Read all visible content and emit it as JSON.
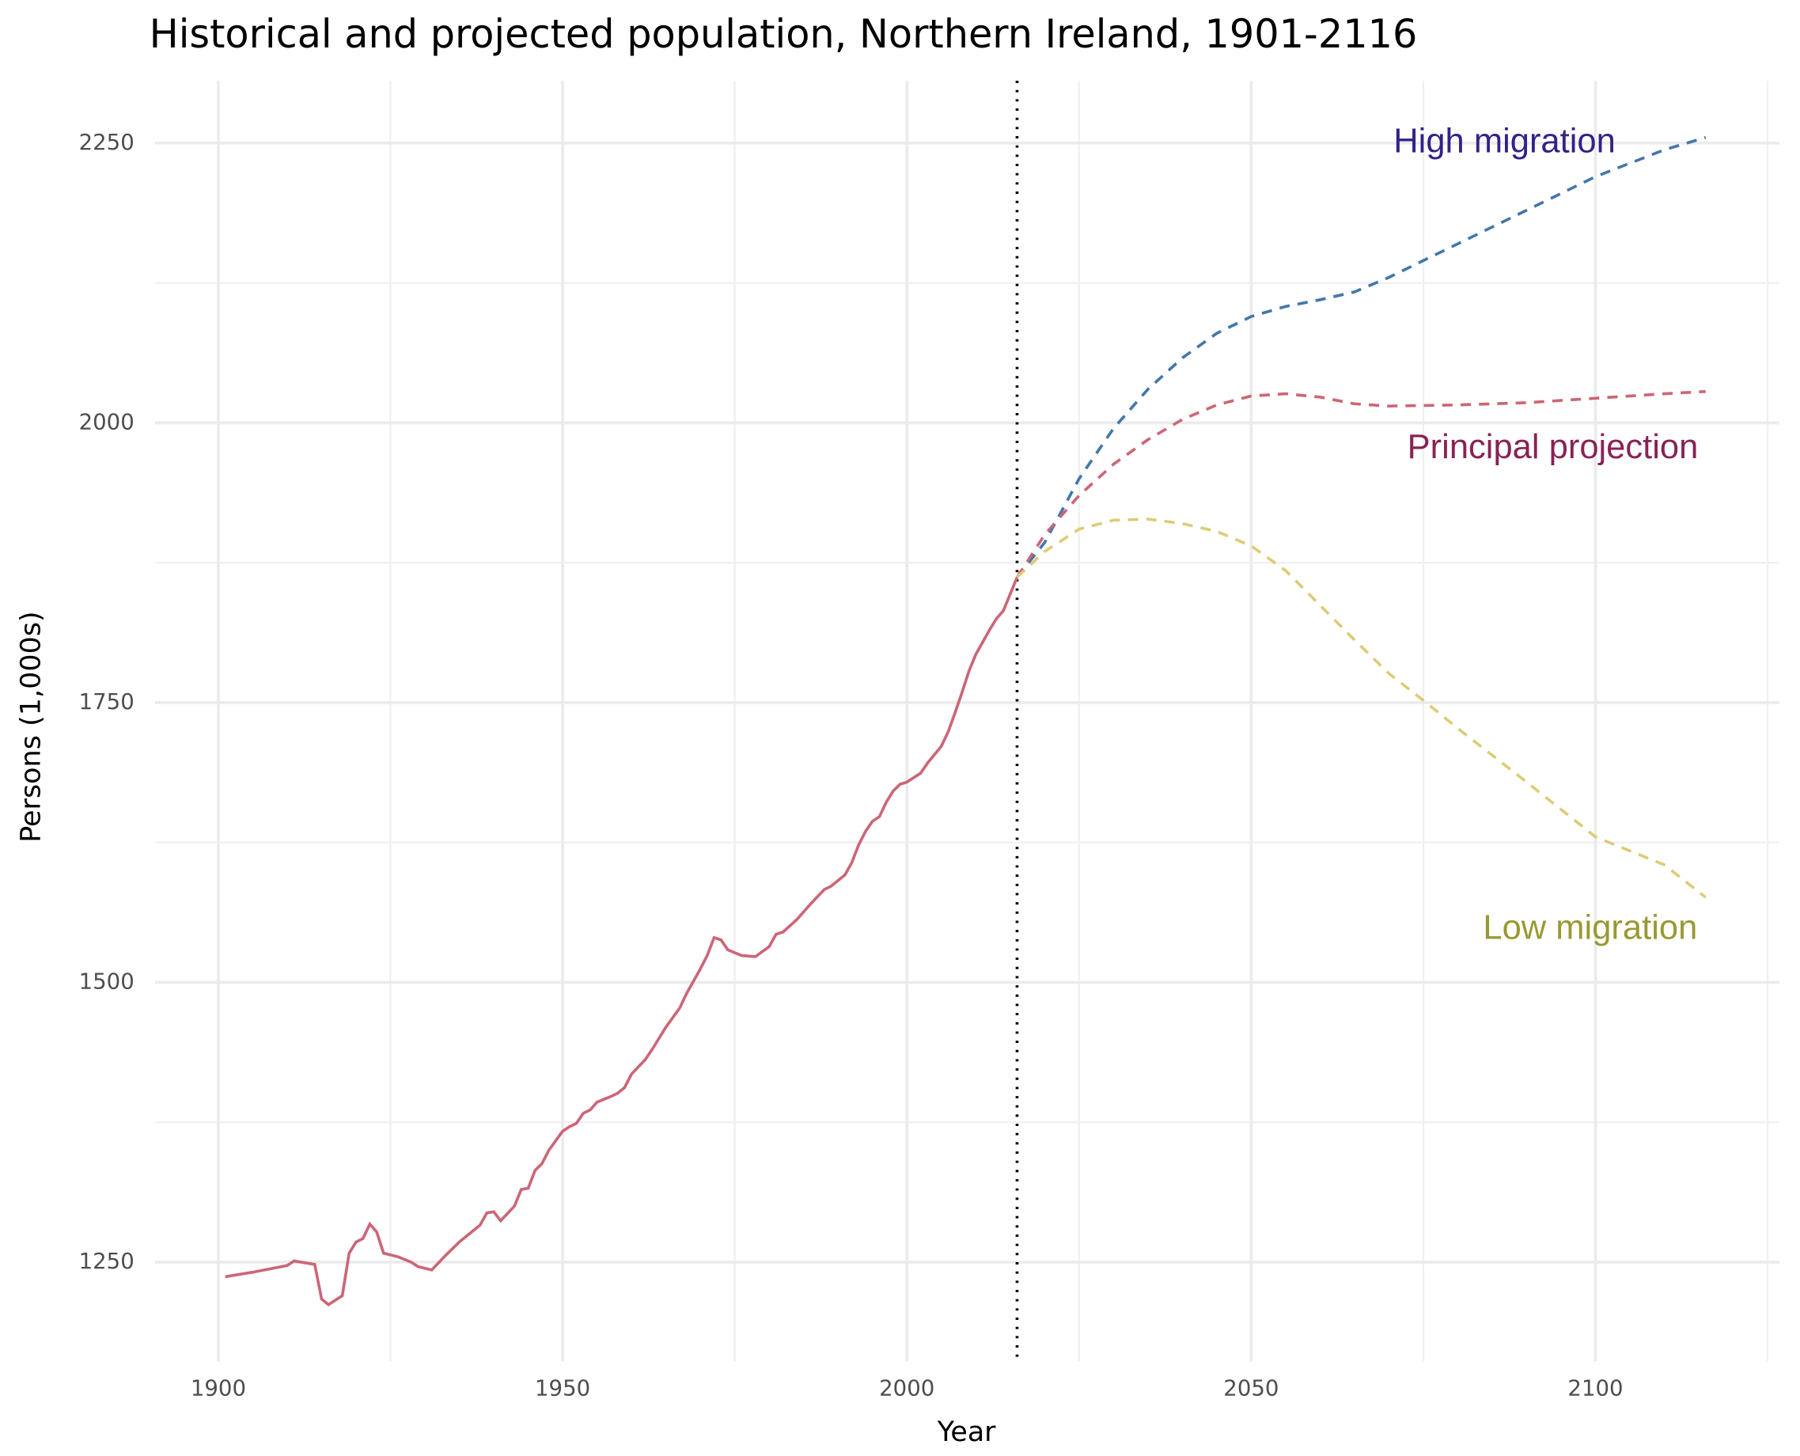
{
  "chart_data": {
    "type": "line",
    "title": "Historical and projected population, Northern Ireland, 1901-2116",
    "x_label": "Year",
    "y_label": "Persons (1,000s)",
    "xlim": [
      1890.8,
      2126.7
    ],
    "ylim": [
      1161.3,
      2305.7
    ],
    "xticks": [
      1900,
      1950,
      2000,
      2050,
      2100
    ],
    "yticks": [
      1250,
      1500,
      1750,
      2000,
      2250
    ],
    "xminor": [
      1925,
      1975,
      2025,
      2075,
      2125
    ],
    "yminor": [
      1375,
      1625,
      1875,
      2125
    ],
    "grid": true,
    "vline": 2016,
    "series": [
      {
        "color": "#cc6677",
        "dashed": false,
        "x": [
          1901,
          1905,
          1910,
          1911,
          1914,
          1915,
          1916,
          1918,
          1919,
          1920,
          1921,
          1922,
          1923,
          1924,
          1926,
          1928,
          1929,
          1931,
          1933,
          1935,
          1938,
          1939,
          1940,
          1941,
          1943,
          1944,
          1945,
          1946,
          1947,
          1948,
          1950,
          1951,
          1952,
          1953,
          1954,
          1955,
          1957,
          1958,
          1959,
          1960,
          1962,
          1963,
          1965,
          1967,
          1968,
          1970,
          1971,
          1972,
          1973,
          1974,
          1976,
          1978,
          1980,
          1981,
          1982,
          1984,
          1986,
          1988,
          1989,
          1991,
          1992,
          1993,
          1994,
          1995,
          1996,
          1997,
          1998,
          1999,
          2000,
          2002,
          2003,
          2005,
          2006,
          2007,
          2008,
          2009,
          2010,
          2011,
          2012,
          2013,
          2014,
          2016
        ],
        "values": [
          1237,
          1241,
          1247,
          1251,
          1248,
          1217,
          1212,
          1220,
          1258,
          1268,
          1271,
          1284,
          1277,
          1258,
          1255,
          1250,
          1246,
          1243,
          1256,
          1268,
          1283,
          1294,
          1295,
          1287,
          1300,
          1315,
          1316,
          1332,
          1338,
          1350,
          1367,
          1371,
          1374,
          1383,
          1386,
          1393,
          1398,
          1401,
          1406,
          1418,
          1431,
          1440,
          1460,
          1477,
          1490,
          1512,
          1524,
          1540,
          1538,
          1529,
          1524,
          1523,
          1532,
          1543,
          1545,
          1556,
          1570,
          1583,
          1586,
          1596,
          1607,
          1623,
          1635,
          1644,
          1648,
          1661,
          1671,
          1677,
          1679,
          1687,
          1696,
          1711,
          1724,
          1741,
          1759,
          1778,
          1793,
          1804,
          1815,
          1825,
          1832,
          1862
        ]
      },
      {
        "name": "High migration",
        "color": "#4477aa",
        "label_color": "#332288",
        "dashed": true,
        "x": [
          2016,
          2020,
          2025,
          2030,
          2035,
          2040,
          2045,
          2050,
          2055,
          2060,
          2065,
          2070,
          2075,
          2080,
          2085,
          2090,
          2095,
          2100,
          2105,
          2110,
          2116
        ],
        "values": [
          1862,
          1893,
          1950,
          1995,
          2030,
          2058,
          2080,
          2095,
          2104,
          2110,
          2117,
          2130,
          2145,
          2160,
          2175,
          2190,
          2205,
          2220,
          2232,
          2244,
          2255
        ]
      },
      {
        "name": "Principal projection",
        "color": "#cc6677",
        "label_color": "#882255",
        "dashed": true,
        "x": [
          2016,
          2020,
          2025,
          2030,
          2035,
          2040,
          2045,
          2050,
          2055,
          2060,
          2065,
          2070,
          2080,
          2090,
          2100,
          2110,
          2116
        ],
        "values": [
          1862,
          1900,
          1935,
          1963,
          1985,
          2003,
          2016,
          2024,
          2026,
          2023,
          2017,
          2015,
          2016,
          2018,
          2022,
          2026,
          2028
        ]
      },
      {
        "name": "Low migration",
        "color": "#ddcc77",
        "label_color": "#999933",
        "dashed": true,
        "x": [
          2016,
          2020,
          2025,
          2030,
          2035,
          2040,
          2045,
          2050,
          2055,
          2060,
          2065,
          2070,
          2075,
          2080,
          2090,
          2100,
          2110,
          2116
        ],
        "values": [
          1862,
          1885,
          1905,
          1913,
          1914,
          1910,
          1903,
          1890,
          1868,
          1837,
          1806,
          1776,
          1752,
          1727,
          1679,
          1630,
          1605,
          1576
        ]
      }
    ]
  }
}
